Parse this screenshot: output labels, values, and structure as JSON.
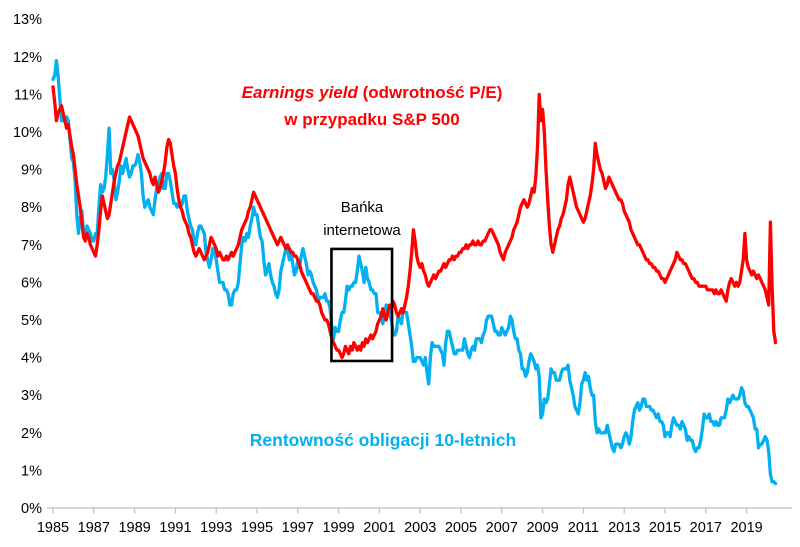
{
  "labels": {
    "red_title_italic": "Earnings yield",
    "red_title_rest": " (odwrotność P/E)",
    "red_title_line2": "w przypadku S&P 500",
    "blue_label": "Rentowność obligacji 10-letnich",
    "annotation_line1": "Bańka",
    "annotation_line2": "internetowa"
  },
  "colors": {
    "red_series": "#FF0000",
    "blue_series": "#00B0F0",
    "axis": "#BFBFBF",
    "annotation_box": "#000000",
    "tick_text": "#000000"
  },
  "chart_data": {
    "type": "line",
    "title": "",
    "x_axis": {
      "start_year": 1985,
      "interval": "monthly",
      "range": [
        1985,
        2020.5
      ],
      "tick_labels": [
        "1985",
        "1987",
        "1989",
        "1991",
        "1993",
        "1995",
        "1997",
        "1999",
        "2001",
        "2003",
        "2005",
        "2007",
        "2009",
        "2011",
        "2013",
        "2015",
        "2017",
        "2019"
      ]
    },
    "y_axis": {
      "min": 0,
      "max": 13,
      "unit": "%",
      "grid": false,
      "tick_labels": [
        "0%",
        "1%",
        "2%",
        "3%",
        "4%",
        "5%",
        "6%",
        "7%",
        "8%",
        "9%",
        "10%",
        "11%",
        "12%",
        "13%"
      ]
    },
    "annotation": {
      "label": "Bańka internetowa",
      "box": {
        "x_from_year": 1998.65,
        "x_to_year": 2001.62,
        "y_from": 3.91,
        "y_to": 6.89
      }
    },
    "series": [
      {
        "name": "Earnings yield (odwrotność P/E) w przypadku S&P 500",
        "color": "#FF0000",
        "values": [
          11.2,
          10.8,
          10.3,
          10.5,
          10.6,
          10.7,
          10.5,
          10.3,
          10.1,
          10.2,
          9.9,
          9.6,
          9.4,
          9.0,
          8.6,
          8.3,
          8.0,
          7.6,
          7.2,
          7.1,
          7.3,
          7.2,
          7.0,
          6.9,
          6.8,
          6.7,
          7.0,
          7.4,
          7.9,
          8.3,
          8.1,
          7.9,
          7.7,
          7.8,
          8.1,
          8.4,
          8.7,
          8.9,
          9.1,
          9.2,
          9.4,
          9.6,
          9.8,
          10.0,
          10.2,
          10.4,
          10.3,
          10.2,
          10.1,
          10.0,
          9.9,
          9.7,
          9.5,
          9.3,
          9.2,
          9.1,
          9.0,
          8.9,
          8.7,
          8.6,
          8.8,
          8.6,
          8.4,
          8.5,
          8.7,
          8.9,
          9.2,
          9.6,
          9.8,
          9.7,
          9.4,
          9.1,
          8.9,
          8.5,
          8.2,
          8.0,
          7.9,
          7.7,
          7.6,
          7.5,
          7.3,
          7.2,
          7.0,
          6.8,
          6.7,
          6.8,
          6.9,
          6.8,
          6.7,
          6.6,
          6.7,
          6.8,
          7.0,
          7.2,
          7.1,
          7.0,
          6.9,
          6.7,
          6.8,
          6.7,
          6.6,
          6.6,
          6.7,
          6.6,
          6.7,
          6.8,
          6.7,
          6.8,
          6.9,
          7.0,
          7.2,
          7.4,
          7.5,
          7.6,
          7.7,
          7.9,
          8.0,
          8.2,
          8.4,
          8.3,
          8.2,
          8.1,
          8.0,
          7.9,
          7.8,
          7.7,
          7.6,
          7.5,
          7.4,
          7.3,
          7.2,
          7.1,
          7.0,
          7.1,
          7.2,
          7.1,
          7.0,
          6.9,
          7.0,
          6.9,
          6.8,
          6.8,
          6.7,
          6.7,
          6.6,
          6.5,
          6.3,
          6.2,
          6.1,
          6.0,
          5.9,
          5.8,
          5.7,
          5.7,
          5.6,
          5.5,
          5.5,
          5.4,
          5.2,
          5.1,
          5.0,
          5.0,
          4.9,
          4.7,
          4.5,
          4.4,
          4.3,
          4.2,
          4.2,
          4.1,
          4.0,
          4.1,
          4.3,
          4.2,
          4.1,
          4.3,
          4.2,
          4.4,
          4.3,
          4.2,
          4.3,
          4.2,
          4.4,
          4.3,
          4.5,
          4.4,
          4.5,
          4.6,
          4.5,
          4.6,
          4.7,
          4.9,
          5.0,
          5.1,
          5.3,
          5.1,
          5.0,
          5.2,
          5.4,
          5.3,
          5.5,
          5.4,
          5.2,
          5.1,
          5.2,
          5.3,
          5.2,
          5.4,
          5.6,
          5.9,
          6.3,
          6.8,
          7.4,
          7.1,
          6.7,
          6.5,
          6.4,
          6.5,
          6.3,
          6.2,
          6.0,
          5.9,
          6.0,
          6.1,
          6.2,
          6.1,
          6.2,
          6.3,
          6.3,
          6.4,
          6.5,
          6.4,
          6.5,
          6.6,
          6.6,
          6.7,
          6.6,
          6.7,
          6.7,
          6.8,
          6.8,
          6.9,
          6.9,
          7.0,
          6.9,
          7.0,
          7.0,
          7.1,
          7.0,
          7.0,
          7.1,
          7.0,
          7.0,
          7.1,
          7.1,
          7.2,
          7.3,
          7.4,
          7.4,
          7.3,
          7.2,
          7.1,
          7.0,
          6.8,
          6.7,
          6.6,
          6.8,
          6.9,
          7.0,
          7.1,
          7.2,
          7.4,
          7.5,
          7.6,
          7.8,
          8.0,
          8.1,
          8.2,
          8.1,
          8.0,
          8.1,
          8.3,
          8.5,
          8.4,
          8.8,
          9.6,
          11.0,
          10.3,
          10.6,
          10.0,
          9.0,
          8.2,
          7.5,
          7.0,
          6.8,
          7.0,
          7.2,
          7.4,
          7.5,
          7.7,
          7.8,
          8.0,
          8.2,
          8.6,
          8.8,
          8.6,
          8.4,
          8.2,
          8.0,
          7.9,
          7.8,
          7.7,
          7.6,
          7.7,
          7.9,
          8.1,
          8.3,
          8.6,
          9.0,
          9.7,
          9.4,
          9.2,
          9.0,
          8.9,
          8.7,
          8.5,
          8.6,
          8.8,
          8.7,
          8.6,
          8.5,
          8.4,
          8.3,
          8.2,
          8.2,
          8.1,
          7.9,
          7.8,
          7.7,
          7.6,
          7.4,
          7.3,
          7.2,
          7.1,
          7.0,
          7.0,
          6.9,
          6.8,
          6.7,
          6.6,
          6.6,
          6.5,
          6.5,
          6.4,
          6.4,
          6.3,
          6.3,
          6.2,
          6.1,
          6.1,
          6.0,
          6.1,
          6.2,
          6.3,
          6.4,
          6.5,
          6.6,
          6.8,
          6.7,
          6.6,
          6.6,
          6.5,
          6.5,
          6.4,
          6.3,
          6.2,
          6.1,
          6.1,
          6.0,
          6.0,
          5.9,
          5.9,
          5.9,
          5.9,
          5.9,
          5.8,
          5.8,
          5.8,
          5.8,
          5.7,
          5.8,
          5.7,
          5.7,
          5.8,
          5.7,
          5.6,
          5.5,
          5.8,
          6.0,
          6.1,
          6.0,
          5.9,
          6.0,
          5.9,
          6.0,
          6.3,
          6.6,
          7.3,
          6.6,
          6.4,
          6.3,
          6.2,
          6.3,
          6.2,
          6.1,
          6.2,
          6.1,
          6.0,
          5.9,
          5.8,
          5.6,
          5.4,
          7.6,
          5.9,
          4.7,
          4.4
        ]
      },
      {
        "name": "Rentowność obligacji 10-letnich",
        "color": "#00B0F0",
        "values": [
          11.4,
          11.5,
          11.9,
          11.5,
          10.9,
          10.3,
          10.3,
          10.3,
          10.4,
          10.3,
          9.8,
          9.3,
          9.2,
          8.7,
          7.8,
          7.3,
          7.7,
          7.9,
          7.3,
          7.2,
          7.5,
          7.4,
          7.3,
          7.1,
          7.1,
          7.3,
          7.3,
          8.0,
          8.6,
          8.4,
          8.5,
          8.8,
          9.4,
          10.1,
          8.9,
          9.0,
          8.7,
          8.2,
          8.4,
          8.7,
          9.1,
          8.9,
          9.1,
          9.3,
          9.0,
          8.8,
          8.9,
          9.1,
          9.1,
          9.2,
          9.4,
          9.2,
          8.9,
          8.3,
          8.0,
          8.1,
          8.2,
          8.0,
          7.9,
          7.8,
          8.2,
          8.5,
          8.6,
          8.8,
          8.9,
          8.5,
          8.5,
          8.9,
          8.9,
          8.7,
          8.4,
          8.1,
          8.1,
          8.0,
          8.1,
          8.0,
          8.1,
          8.3,
          8.3,
          7.9,
          7.7,
          7.5,
          7.4,
          7.1,
          7.0,
          7.3,
          7.5,
          7.5,
          7.4,
          7.3,
          6.8,
          6.6,
          6.4,
          6.6,
          6.9,
          6.8,
          6.6,
          6.3,
          6.0,
          6.0,
          6.0,
          5.8,
          5.8,
          5.7,
          5.4,
          5.4,
          5.7,
          5.8,
          5.8,
          6.0,
          6.5,
          7.0,
          7.2,
          7.1,
          7.3,
          7.2,
          7.5,
          7.7,
          8.0,
          7.8,
          7.8,
          7.5,
          7.2,
          7.1,
          6.6,
          6.2,
          6.3,
          6.5,
          6.2,
          6.0,
          5.9,
          5.7,
          5.6,
          5.8,
          6.3,
          6.5,
          6.7,
          6.9,
          6.9,
          6.6,
          6.8,
          6.5,
          6.2,
          6.3,
          6.6,
          6.4,
          6.7,
          6.9,
          6.7,
          6.5,
          6.2,
          6.3,
          6.2,
          6.0,
          5.9,
          5.8,
          5.5,
          5.6,
          5.6,
          5.6,
          5.7,
          5.5,
          5.5,
          5.3,
          4.8,
          4.5,
          4.8,
          4.7,
          4.7,
          5.0,
          5.2,
          5.2,
          5.5,
          5.9,
          5.8,
          5.9,
          5.9,
          6.0,
          6.0,
          6.3,
          6.7,
          6.5,
          6.3,
          6.0,
          6.4,
          6.1,
          6.0,
          5.8,
          5.8,
          5.7,
          5.7,
          5.2,
          5.2,
          5.1,
          4.9,
          5.1,
          5.4,
          5.3,
          5.2,
          5.0,
          4.7,
          4.6,
          4.7,
          5.1,
          5.0,
          4.9,
          5.3,
          5.2,
          5.2,
          4.9,
          4.6,
          4.3,
          3.9,
          3.9,
          4.0,
          4.0,
          4.0,
          3.9,
          3.8,
          4.0,
          3.6,
          3.3,
          4.0,
          4.4,
          4.3,
          4.3,
          4.3,
          4.3,
          4.2,
          4.1,
          3.8,
          4.4,
          4.7,
          4.7,
          4.5,
          4.3,
          4.1,
          4.1,
          4.2,
          4.2,
          4.2,
          4.2,
          4.5,
          4.3,
          4.1,
          4.0,
          4.2,
          4.3,
          4.2,
          4.5,
          4.5,
          4.5,
          4.4,
          4.6,
          4.7,
          5.0,
          5.1,
          5.1,
          5.1,
          4.9,
          4.7,
          4.7,
          4.6,
          4.6,
          4.8,
          4.7,
          4.6,
          4.7,
          4.8,
          5.1,
          5.0,
          4.7,
          4.5,
          4.5,
          4.2,
          4.1,
          3.7,
          3.7,
          3.5,
          3.6,
          3.9,
          4.1,
          4.0,
          3.9,
          3.7,
          3.8,
          3.5,
          2.4,
          2.5,
          2.9,
          2.8,
          2.9,
          3.3,
          3.7,
          3.6,
          3.6,
          3.4,
          3.4,
          3.4,
          3.6,
          3.7,
          3.7,
          3.7,
          3.8,
          3.4,
          3.2,
          3.0,
          2.7,
          2.6,
          2.5,
          2.8,
          3.3,
          3.4,
          3.6,
          3.4,
          3.5,
          3.2,
          3.0,
          3.0,
          2.3,
          2.0,
          2.1,
          2.0,
          2.0,
          2.0,
          2.0,
          2.2,
          2.0,
          1.8,
          1.6,
          1.5,
          1.7,
          1.7,
          1.7,
          1.6,
          1.7,
          1.9,
          2.0,
          1.9,
          1.7,
          1.9,
          2.3,
          2.6,
          2.7,
          2.8,
          2.6,
          2.7,
          2.9,
          2.9,
          2.7,
          2.7,
          2.7,
          2.6,
          2.6,
          2.5,
          2.4,
          2.5,
          2.3,
          2.3,
          2.2,
          1.9,
          2.0,
          2.0,
          1.9,
          2.2,
          2.4,
          2.3,
          2.2,
          2.2,
          2.1,
          2.3,
          2.2,
          2.1,
          1.8,
          1.9,
          1.8,
          1.8,
          1.6,
          1.5,
          1.6,
          1.6,
          1.8,
          2.1,
          2.5,
          2.4,
          2.4,
          2.5,
          2.3,
          2.3,
          2.2,
          2.3,
          2.2,
          2.2,
          2.4,
          2.4,
          2.4,
          2.6,
          2.9,
          2.8,
          2.9,
          3.0,
          2.9,
          2.9,
          2.9,
          3.0,
          3.2,
          3.1,
          2.8,
          2.7,
          2.7,
          2.6,
          2.5,
          2.4,
          2.1,
          2.1,
          1.6,
          1.7,
          1.7,
          1.8,
          1.9,
          1.8,
          1.5,
          0.9,
          0.7,
          0.7,
          0.65
        ]
      }
    ]
  }
}
